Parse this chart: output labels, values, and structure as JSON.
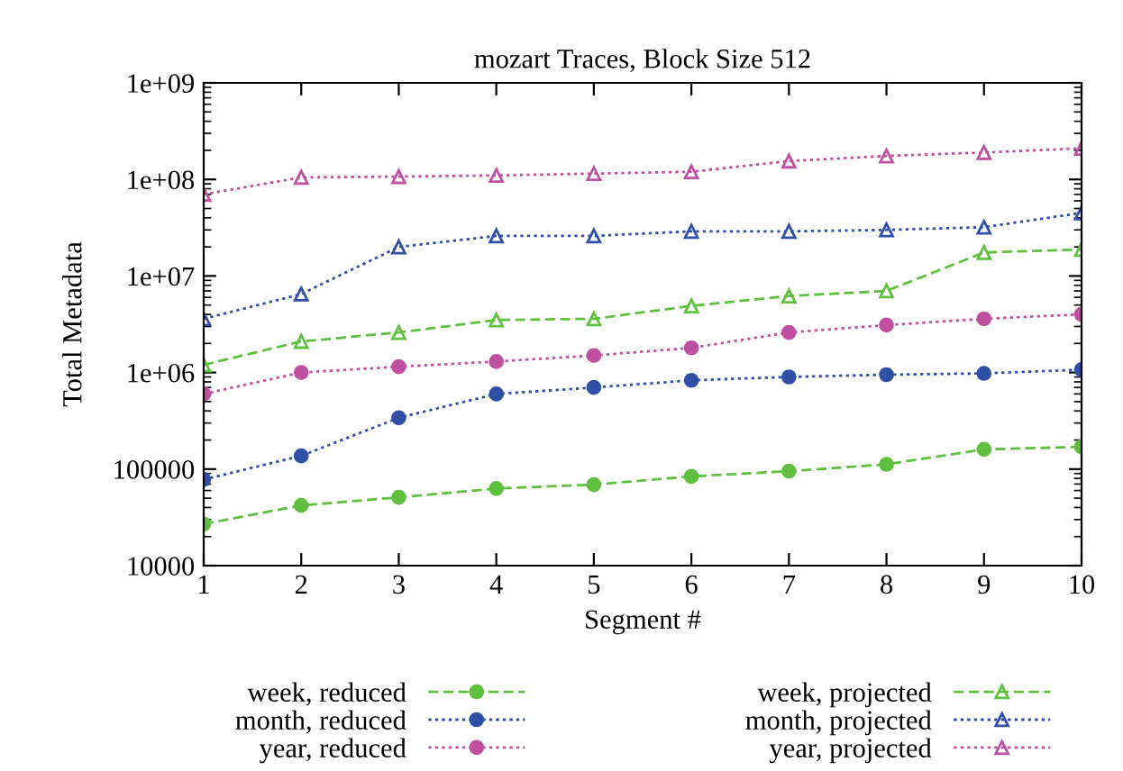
{
  "chart_data": {
    "type": "line",
    "title": "mozart Traces, Block Size 512",
    "xlabel": "Segment #",
    "ylabel": "Total Metadata",
    "x": [
      1,
      2,
      3,
      4,
      5,
      6,
      7,
      8,
      9,
      10
    ],
    "series": [
      {
        "name": "week, reduced",
        "color": "#5fbf3f",
        "marker": "circle",
        "line_style": "dashed",
        "values": [
          27000,
          42000,
          51000,
          63000,
          69000,
          84000,
          95000,
          112000,
          160000,
          170000
        ]
      },
      {
        "name": "month, reduced",
        "color": "#3050a8",
        "marker": "circle",
        "line_style": "dotted",
        "values": [
          78000,
          137000,
          340000,
          600000,
          700000,
          830000,
          900000,
          950000,
          980000,
          1070000
        ]
      },
      {
        "name": "year, reduced",
        "color": "#c050a0",
        "marker": "circle",
        "line_style": "dotted",
        "values": [
          600000,
          1000000,
          1150000,
          1300000,
          1500000,
          1800000,
          2600000,
          3100000,
          3600000,
          4000000
        ]
      },
      {
        "name": "week, projected",
        "color": "#5fbf3f",
        "marker": "triangle",
        "line_style": "dashed",
        "values": [
          1200000,
          2100000,
          2600000,
          3500000,
          3600000,
          4900000,
          6200000,
          7000000,
          17500000,
          18800000
        ]
      },
      {
        "name": "month, projected",
        "color": "#3050a8",
        "marker": "triangle",
        "line_style": "dotted",
        "values": [
          3600000,
          6500000,
          20000000,
          26000000,
          26000000,
          29000000,
          29000000,
          30000000,
          32000000,
          45000000
        ]
      },
      {
        "name": "year, projected",
        "color": "#c050a0",
        "marker": "triangle",
        "line_style": "dotted",
        "values": [
          70000000,
          105000000,
          107000000,
          110000000,
          115000000,
          120000000,
          155000000,
          175000000,
          190000000,
          210000000
        ]
      }
    ],
    "log": "y",
    "xlim": [
      1,
      10
    ],
    "xticks": [
      1,
      2,
      3,
      4,
      5,
      6,
      7,
      8,
      9,
      10
    ],
    "ylim": [
      10000,
      1000000000
    ],
    "yticks": [
      {
        "value": 10000,
        "label": "10000"
      },
      {
        "value": 100000,
        "label": "100000"
      },
      {
        "value": 1000000,
        "label": "1e+06"
      },
      {
        "value": 10000000,
        "label": "1e+07"
      },
      {
        "value": 100000000,
        "label": "1e+08"
      },
      {
        "value": 1000000000,
        "label": "1e+09"
      }
    ],
    "grid": false,
    "legend": "bottom"
  }
}
